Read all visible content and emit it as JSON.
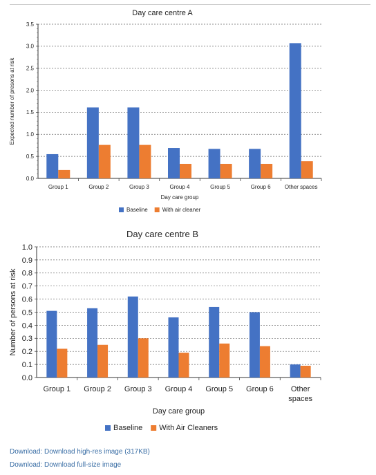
{
  "chart_data": [
    {
      "type": "bar",
      "title": "Day care centre A",
      "xlabel": "Day care group",
      "ylabel": "Expected number of presons at risk",
      "ylim": [
        0,
        3.5
      ],
      "yticks": [
        "0.0",
        "0.5",
        "1.0",
        "1.5",
        "2.0",
        "2.5",
        "3.0",
        "3.5"
      ],
      "grid": true,
      "legend_position": "bottom",
      "categories": [
        "Group 1",
        "Group 2",
        "Group 3",
        "Group 4",
        "Group 5",
        "Group 6",
        "Other spaces"
      ],
      "series": [
        {
          "name": "Baseline",
          "color": "#4472c4",
          "values": [
            0.55,
            1.61,
            1.61,
            0.69,
            0.67,
            0.67,
            3.07
          ]
        },
        {
          "name": "With air cleaner",
          "color": "#ed7d31",
          "values": [
            0.19,
            0.76,
            0.76,
            0.33,
            0.33,
            0.33,
            0.39
          ]
        }
      ]
    },
    {
      "type": "bar",
      "title": "Day care centre B",
      "xlabel": "Day care group",
      "ylabel": "Number of persons at risk",
      "ylim": [
        0,
        1.0
      ],
      "yticks": [
        "0.0",
        "0.1",
        "0.2",
        "0.3",
        "0.4",
        "0.5",
        "0.6",
        "0.7",
        "0.8",
        "0.9",
        "1.0"
      ],
      "grid": true,
      "legend_position": "bottom",
      "categories": [
        "Group 1",
        "Group 2",
        "Group 3",
        "Group 4",
        "Group 5",
        "Group 6",
        "Other|spaces"
      ],
      "series": [
        {
          "name": "Baseline",
          "color": "#4472c4",
          "values": [
            0.51,
            0.53,
            0.62,
            0.46,
            0.54,
            0.5,
            0.1
          ]
        },
        {
          "name": "With Air Cleaners",
          "color": "#ed7d31",
          "values": [
            0.22,
            0.25,
            0.3,
            0.19,
            0.26,
            0.24,
            0.09
          ]
        }
      ]
    }
  ],
  "links": {
    "highres": "Download: Download high-res image (317KB)",
    "fullsize": "Download: Download full-size image"
  }
}
